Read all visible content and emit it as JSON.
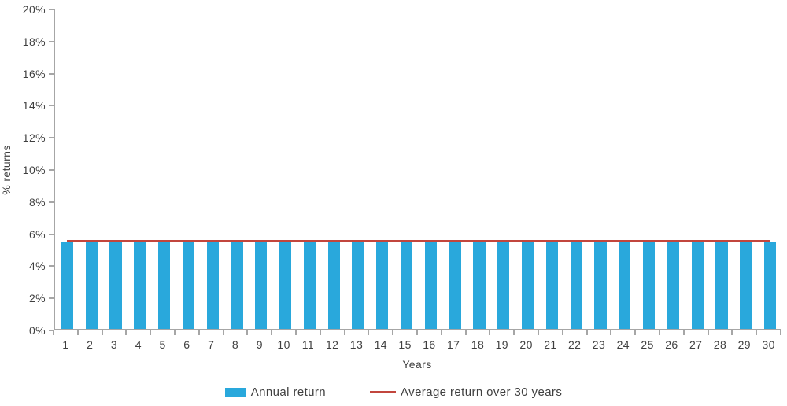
{
  "chart_data": {
    "type": "bar",
    "categories": [
      "1",
      "2",
      "3",
      "4",
      "5",
      "6",
      "7",
      "8",
      "9",
      "10",
      "11",
      "12",
      "13",
      "14",
      "15",
      "16",
      "17",
      "18",
      "19",
      "20",
      "21",
      "22",
      "23",
      "24",
      "25",
      "26",
      "27",
      "28",
      "29",
      "30"
    ],
    "series": [
      {
        "name": "Annual return",
        "type": "bar",
        "color": "#29a8dc",
        "values": [
          5.5,
          5.5,
          5.5,
          5.5,
          5.5,
          5.5,
          5.5,
          5.5,
          5.5,
          5.5,
          5.5,
          5.5,
          5.5,
          5.5,
          5.5,
          5.5,
          5.5,
          5.5,
          5.5,
          5.5,
          5.5,
          5.5,
          5.5,
          5.5,
          5.5,
          5.5,
          5.5,
          5.5,
          5.5,
          5.5
        ]
      },
      {
        "name": "Average return over 30 years",
        "type": "line",
        "color": "#c2463d",
        "values": [
          5.5,
          5.5,
          5.5,
          5.5,
          5.5,
          5.5,
          5.5,
          5.5,
          5.5,
          5.5,
          5.5,
          5.5,
          5.5,
          5.5,
          5.5,
          5.5,
          5.5,
          5.5,
          5.5,
          5.5,
          5.5,
          5.5,
          5.5,
          5.5,
          5.5,
          5.5,
          5.5,
          5.5,
          5.5,
          5.5
        ]
      }
    ],
    "title": "",
    "xlabel": "Years",
    "ylabel": "% returns",
    "ylim": [
      0,
      20
    ],
    "ytick_step": 2,
    "ytick_suffix": "%",
    "grid": false,
    "legend_position": "bottom",
    "axis_color": "#a6a6a6",
    "text_color": "#3f3f3f"
  }
}
